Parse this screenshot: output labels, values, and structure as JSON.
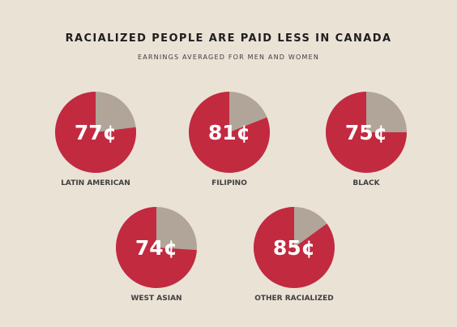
{
  "title": "RACIALIZED PEOPLE ARE PAID LESS IN CANADA",
  "subtitle": "EARNINGS AVERAGED FOR MEN AND WOMEN",
  "colors": {
    "background": "#ebe2d6",
    "share": "#c22a40",
    "remainder": "#b0a598",
    "text": "#1e1e1e"
  },
  "chart_data": {
    "type": "pie",
    "title": "RACIALIZED PEOPLE ARE PAID LESS IN CANADA",
    "subtitle": "EARNINGS AVERAGED FOR MEN AND WOMEN",
    "unit": "¢",
    "total": 100,
    "items": [
      {
        "category": "LATIN AMERICAN",
        "value": 77,
        "label": "77¢"
      },
      {
        "category": "FILIPINO",
        "value": 81,
        "label": "81¢"
      },
      {
        "category": "BLACK",
        "value": 75,
        "label": "75¢"
      },
      {
        "category": "WEST ASIAN",
        "value": 74,
        "label": "74¢"
      },
      {
        "category": "OTHER RACIALIZED",
        "value": 85,
        "label": "85¢"
      }
    ]
  }
}
